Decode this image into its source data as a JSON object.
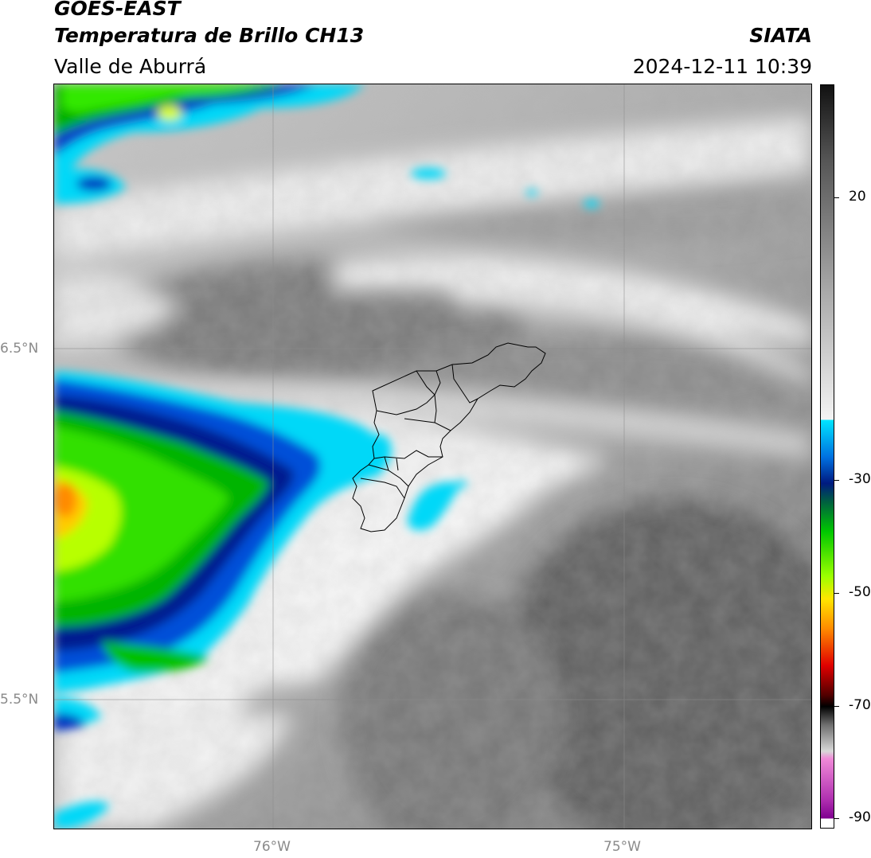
{
  "header": {
    "satellite": "GOES-EAST",
    "product": "Temperatura de Brillo CH13",
    "region": "Valle de Aburrá",
    "agency": "SIATA",
    "timestamp": "2024-12-11 10:39"
  },
  "axes": {
    "lat_ticks": [
      {
        "label": "6.5°N",
        "value": 6.5
      },
      {
        "label": "5.5°N",
        "value": 5.5
      }
    ],
    "lon_ticks": [
      {
        "label": "76°W",
        "value": -76
      },
      {
        "label": "75°W",
        "value": -75
      }
    ],
    "lat_range": [
      5.135,
      7.25
    ],
    "lon_range": [
      -76.625,
      -74.47
    ]
  },
  "colorbar": {
    "range": [
      -90,
      30
    ],
    "ticks": [
      {
        "label": "20",
        "value": 20
      },
      {
        "label": "-30",
        "value": -30
      },
      {
        "label": "-50",
        "value": -50
      },
      {
        "label": "-70",
        "value": -70
      },
      {
        "label": "-90",
        "value": -90
      }
    ],
    "colors": {
      "cyan": "#00e5ff",
      "blue": "#0030c0",
      "navy": "#001a80",
      "green": "#00c800",
      "lime": "#9cff00",
      "yellow": "#ffe600",
      "orange": "#ff8c00",
      "red": "#e00000",
      "dark_red": "#500000",
      "magenta": "#e040c0",
      "purple": "#800090"
    }
  }
}
